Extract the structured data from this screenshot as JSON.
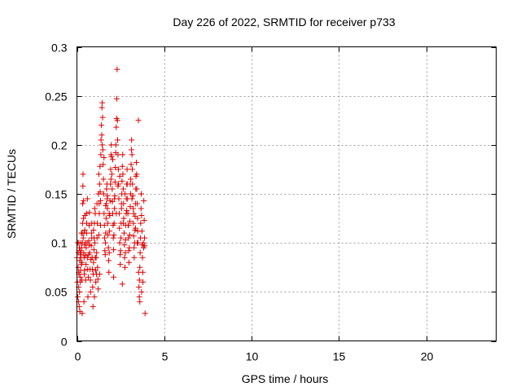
{
  "chart_data": {
    "type": "scatter",
    "title": "Day 226 of 2022, SRMTID for receiver p733",
    "xlabel": "GPS time / hours",
    "ylabel": "SRMTID / TECUs",
    "xlim": [
      0,
      24
    ],
    "ylim": [
      0,
      0.3
    ],
    "xticks": [
      0,
      5,
      10,
      15,
      20
    ],
    "xtick_labels": [
      "0",
      "5",
      "10",
      "15",
      "20"
    ],
    "yticks": [
      0,
      0.05,
      0.1,
      0.15,
      0.2,
      0.25,
      0.3
    ],
    "ytick_labels": [
      "0",
      "0.05",
      "0.1",
      "0.15",
      "0.2",
      "0.25",
      "0.3"
    ],
    "grid": true,
    "marker": "plus",
    "color": "#dd0000",
    "series": [
      {
        "points": [
          [
            0.0,
            0.085
          ],
          [
            0.02,
            0.06
          ],
          [
            0.04,
            0.1
          ],
          [
            0.05,
            0.045
          ],
          [
            0.07,
            0.075
          ],
          [
            0.08,
            0.09
          ],
          [
            0.09,
            0.04
          ],
          [
            0.1,
            0.055
          ],
          [
            0.11,
            0.1
          ],
          [
            0.12,
            0.068
          ],
          [
            0.13,
            0.035
          ],
          [
            0.14,
            0.095
          ],
          [
            0.15,
            0.05
          ],
          [
            0.16,
            0.082
          ],
          [
            0.17,
            0.03
          ],
          [
            0.18,
            0.092
          ],
          [
            0.19,
            0.06
          ],
          [
            0.2,
            0.088
          ],
          [
            0.21,
            0.072
          ],
          [
            0.22,
            0.1
          ],
          [
            0.23,
            0.085
          ],
          [
            0.24,
            0.09
          ],
          [
            0.25,
            0.078
          ],
          [
            0.26,
            0.11
          ],
          [
            0.27,
            0.095
          ],
          [
            0.28,
            0.062
          ],
          [
            0.29,
            0.08
          ],
          [
            0.3,
            0.028
          ],
          [
            0.31,
            0.1
          ],
          [
            0.32,
            0.12
          ],
          [
            0.33,
            0.14
          ],
          [
            0.34,
            0.158
          ],
          [
            0.35,
            0.17
          ],
          [
            0.36,
            0.105
          ],
          [
            0.37,
            0.125
          ],
          [
            0.38,
            0.143
          ],
          [
            0.39,
            0.09
          ],
          [
            0.4,
            0.11
          ],
          [
            0.41,
            0.085
          ],
          [
            0.42,
            0.068
          ],
          [
            0.43,
            0.072
          ],
          [
            0.44,
            0.098
          ],
          [
            0.45,
            0.113
          ],
          [
            0.46,
            0.128
          ],
          [
            0.47,
            0.1
          ],
          [
            0.48,
            0.087
          ],
          [
            0.5,
            0.062
          ],
          [
            0.52,
            0.078
          ],
          [
            0.53,
            0.095
          ],
          [
            0.55,
            0.11
          ],
          [
            0.56,
            0.12
          ],
          [
            0.58,
            0.1
          ],
          [
            0.6,
            0.085
          ],
          [
            0.62,
            0.073
          ],
          [
            0.63,
            0.045
          ],
          [
            0.65,
            0.065
          ],
          [
            0.67,
            0.088
          ],
          [
            0.68,
            0.102
          ],
          [
            0.7,
            0.118
          ],
          [
            0.72,
            0.131
          ],
          [
            0.73,
            0.09
          ],
          [
            0.75,
            0.073
          ],
          [
            0.77,
            0.062
          ],
          [
            0.78,
            0.05
          ],
          [
            0.8,
            0.083
          ],
          [
            0.82,
            0.097
          ],
          [
            0.83,
            0.11
          ],
          [
            0.85,
            0.12
          ],
          [
            0.87,
            0.085
          ],
          [
            0.88,
            0.073
          ],
          [
            0.9,
            0.055
          ],
          [
            0.92,
            0.035
          ],
          [
            0.93,
            0.068
          ],
          [
            0.95,
            0.08
          ],
          [
            0.97,
            0.093
          ],
          [
            0.98,
            0.105
          ],
          [
            1.0,
            0.12
          ],
          [
            1.02,
            0.135
          ],
          [
            1.03,
            0.1
          ],
          [
            1.05,
            0.085
          ],
          [
            1.07,
            0.072
          ],
          [
            1.08,
            0.06
          ],
          [
            1.1,
            0.085
          ],
          [
            1.12,
            0.068
          ],
          [
            1.13,
            0.09
          ],
          [
            1.15,
            0.105
          ],
          [
            1.17,
            0.12
          ],
          [
            1.18,
            0.075
          ],
          [
            1.2,
            0.063
          ],
          [
            1.22,
            0.053
          ],
          [
            1.23,
            0.15
          ],
          [
            1.25,
            0.17
          ],
          [
            1.27,
            0.14
          ],
          [
            1.28,
            0.13
          ],
          [
            1.3,
            0.16
          ],
          [
            1.32,
            0.178
          ],
          [
            1.33,
            0.152
          ],
          [
            1.35,
            0.143
          ],
          [
            1.37,
            0.19
          ],
          [
            1.38,
            0.205
          ],
          [
            1.4,
            0.22
          ],
          [
            1.42,
            0.21
          ],
          [
            1.43,
            0.238
          ],
          [
            1.45,
            0.243
          ],
          [
            1.47,
            0.228
          ],
          [
            1.48,
            0.195
          ],
          [
            1.5,
            0.18
          ],
          [
            1.52,
            0.165
          ],
          [
            1.53,
            0.15
          ],
          [
            1.55,
            0.13
          ],
          [
            1.57,
            0.118
          ],
          [
            1.58,
            0.105
          ],
          [
            1.6,
            0.092
          ],
          [
            1.62,
            0.088
          ],
          [
            1.63,
            0.1
          ],
          [
            1.65,
            0.11
          ],
          [
            1.67,
            0.125
          ],
          [
            1.68,
            0.14
          ],
          [
            1.7,
            0.155
          ],
          [
            1.72,
            0.16
          ],
          [
            1.73,
            0.145
          ],
          [
            1.75,
            0.135
          ],
          [
            1.77,
            0.12
          ],
          [
            1.78,
            0.108
          ],
          [
            1.8,
            0.095
          ],
          [
            1.82,
            0.082
          ],
          [
            1.83,
            0.07
          ],
          [
            1.85,
            0.09
          ],
          [
            1.87,
            0.112
          ],
          [
            1.88,
            0.128
          ],
          [
            1.9,
            0.143
          ],
          [
            1.92,
            0.16
          ],
          [
            1.93,
            0.175
          ],
          [
            1.95,
            0.19
          ],
          [
            1.97,
            0.2
          ],
          [
            1.98,
            0.188
          ],
          [
            2.0,
            0.17
          ],
          [
            2.02,
            0.155
          ],
          [
            2.03,
            0.142
          ],
          [
            2.05,
            0.13
          ],
          [
            2.07,
            0.118
          ],
          [
            2.08,
            0.105
          ],
          [
            2.1,
            0.093
          ],
          [
            2.12,
            0.108
          ],
          [
            2.13,
            0.12
          ],
          [
            2.15,
            0.135
          ],
          [
            2.17,
            0.148
          ],
          [
            2.18,
            0.162
          ],
          [
            2.2,
            0.177
          ],
          [
            2.22,
            0.192
          ],
          [
            2.23,
            0.2
          ],
          [
            2.25,
            0.218
          ],
          [
            2.27,
            0.227
          ],
          [
            2.28,
            0.247
          ],
          [
            2.3,
            0.277
          ],
          [
            2.32,
            0.225
          ],
          [
            2.33,
            0.205
          ],
          [
            2.35,
            0.19
          ],
          [
            2.37,
            0.175
          ],
          [
            2.38,
            0.16
          ],
          [
            2.4,
            0.145
          ],
          [
            2.42,
            0.13
          ],
          [
            2.43,
            0.115
          ],
          [
            2.45,
            0.1
          ],
          [
            2.47,
            0.088
          ],
          [
            2.48,
            0.078
          ],
          [
            2.5,
            0.092
          ],
          [
            2.52,
            0.105
          ],
          [
            2.53,
            0.12
          ],
          [
            2.55,
            0.135
          ],
          [
            2.57,
            0.15
          ],
          [
            2.58,
            0.163
          ],
          [
            2.6,
            0.178
          ],
          [
            2.62,
            0.19
          ],
          [
            2.63,
            0.17
          ],
          [
            2.65,
            0.155
          ],
          [
            2.67,
            0.14
          ],
          [
            2.68,
            0.125
          ],
          [
            2.7,
            0.11
          ],
          [
            2.72,
            0.098
          ],
          [
            2.73,
            0.085
          ],
          [
            2.75,
            0.075
          ],
          [
            2.77,
            0.09
          ],
          [
            2.78,
            0.103
          ],
          [
            2.8,
            0.118
          ],
          [
            2.82,
            0.13
          ],
          [
            2.83,
            0.145
          ],
          [
            2.85,
            0.16
          ],
          [
            2.87,
            0.175
          ],
          [
            2.88,
            0.16
          ],
          [
            2.9,
            0.145
          ],
          [
            2.92,
            0.13
          ],
          [
            2.93,
            0.118
          ],
          [
            2.95,
            0.105
          ],
          [
            2.97,
            0.092
          ],
          [
            2.98,
            0.08
          ],
          [
            3.0,
            0.095
          ],
          [
            3.02,
            0.108
          ],
          [
            3.03,
            0.122
          ],
          [
            3.05,
            0.137
          ],
          [
            3.07,
            0.15
          ],
          [
            3.08,
            0.165
          ],
          [
            3.1,
            0.18
          ],
          [
            3.12,
            0.195
          ],
          [
            3.13,
            0.205
          ],
          [
            3.15,
            0.19
          ],
          [
            3.17,
            0.175
          ],
          [
            3.18,
            0.16
          ],
          [
            3.2,
            0.148
          ],
          [
            3.22,
            0.135
          ],
          [
            3.23,
            0.12
          ],
          [
            3.25,
            0.107
          ],
          [
            3.27,
            0.095
          ],
          [
            3.28,
            0.085
          ],
          [
            3.3,
            0.1
          ],
          [
            3.32,
            0.113
          ],
          [
            3.33,
            0.127
          ],
          [
            3.35,
            0.14
          ],
          [
            3.37,
            0.155
          ],
          [
            3.38,
            0.168
          ],
          [
            3.4,
            0.182
          ],
          [
            3.42,
            0.17
          ],
          [
            3.43,
            0.155
          ],
          [
            3.45,
            0.14
          ],
          [
            3.47,
            0.125
          ],
          [
            3.48,
            0.112
          ],
          [
            3.5,
            0.1
          ],
          [
            3.52,
            0.225
          ],
          [
            3.53,
            0.07
          ],
          [
            3.55,
            0.055
          ],
          [
            3.57,
            0.045
          ],
          [
            3.58,
            0.062
          ],
          [
            3.6,
            0.075
          ],
          [
            3.62,
            0.09
          ],
          [
            3.63,
            0.105
          ],
          [
            3.65,
            0.12
          ],
          [
            3.67,
            0.135
          ],
          [
            3.68,
            0.15
          ],
          [
            3.7,
            0.128
          ],
          [
            3.72,
            0.112
          ],
          [
            3.73,
            0.098
          ],
          [
            3.75,
            0.085
          ],
          [
            3.77,
            0.07
          ],
          [
            3.78,
            0.06
          ],
          [
            3.8,
            0.1
          ],
          [
            3.82,
            0.095
          ],
          [
            3.83,
            0.143
          ],
          [
            3.85,
            0.123
          ],
          [
            3.87,
            0.105
          ],
          [
            3.88,
            0.097
          ],
          [
            3.9,
            0.028
          ],
          [
            0.55,
            0.13
          ],
          [
            0.6,
            0.145
          ],
          [
            0.7,
            0.098
          ],
          [
            0.85,
            0.105
          ],
          [
            0.95,
            0.113
          ],
          [
            1.05,
            0.13
          ],
          [
            1.15,
            0.14
          ],
          [
            1.25,
            0.108
          ],
          [
            1.35,
            0.118
          ],
          [
            1.45,
            0.2
          ],
          [
            1.55,
            0.187
          ],
          [
            1.65,
            0.138
          ],
          [
            1.75,
            0.148
          ],
          [
            1.85,
            0.13
          ],
          [
            1.95,
            0.165
          ],
          [
            2.05,
            0.185
          ],
          [
            2.15,
            0.145
          ],
          [
            2.25,
            0.13
          ],
          [
            2.35,
            0.158
          ],
          [
            2.45,
            0.168
          ],
          [
            2.55,
            0.14
          ],
          [
            2.65,
            0.12
          ],
          [
            2.75,
            0.15
          ],
          [
            2.85,
            0.133
          ],
          [
            2.95,
            0.118
          ],
          [
            3.05,
            0.16
          ],
          [
            3.15,
            0.145
          ],
          [
            3.25,
            0.13
          ],
          [
            3.35,
            0.115
          ],
          [
            3.45,
            0.1
          ],
          [
            2.1,
            0.065
          ],
          [
            2.6,
            0.058
          ],
          [
            1.3,
            0.068
          ],
          [
            1.0,
            0.045
          ],
          [
            0.4,
            0.04
          ],
          [
            0.3,
            0.11
          ],
          [
            0.2,
            0.065
          ],
          [
            0.1,
            0.07
          ],
          [
            3.6,
            0.04
          ],
          [
            3.7,
            0.05
          ]
        ]
      }
    ]
  }
}
